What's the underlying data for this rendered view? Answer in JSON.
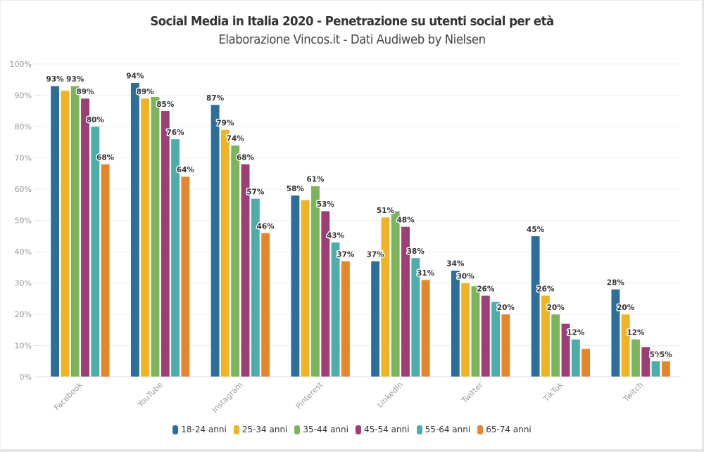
{
  "chart_data": {
    "type": "bar",
    "title": "Social Media in Italia 2020 - Penetrazione su utenti social per età",
    "subtitle": "Elaborazione Vincos.it - Dati Audiweb by Nielsen",
    "xlabel": "",
    "ylabel": "",
    "ylim": [
      0,
      100
    ],
    "yticks": [
      "0%",
      "10%",
      "20%",
      "30%",
      "40%",
      "50%",
      "60%",
      "70%",
      "80%",
      "90%",
      "100%"
    ],
    "grid": true,
    "legend_position": "bottom",
    "categories": [
      "Facebook",
      "YouTube",
      "Instagram",
      "Pinterest",
      "LinkedIn",
      "Twitter",
      "TikTok",
      "Twitch"
    ],
    "series": [
      {
        "name": "18-24 anni",
        "color": "#2e6f9a",
        "values": [
          93,
          94,
          87,
          58,
          37,
          34,
          45,
          28
        ],
        "labels": [
          "93%",
          "94%",
          "87%",
          "58%",
          "37%",
          "34%",
          "45%",
          "28%"
        ]
      },
      {
        "name": "25-34 anni",
        "color": "#f0b323",
        "values": [
          91.5,
          89,
          79,
          56.5,
          51,
          30,
          26,
          20
        ],
        "labels": [
          "",
          "89%",
          "79%",
          "",
          "51%",
          "30%",
          "26%",
          "20%"
        ]
      },
      {
        "name": "35-44 anni",
        "color": "#7cb45a",
        "values": [
          93,
          89.5,
          74,
          61,
          53,
          29,
          20,
          12
        ],
        "labels": [
          "93%",
          "",
          "74%",
          "61%",
          "",
          "",
          "20%",
          "12%"
        ]
      },
      {
        "name": "45-54 anni",
        "color": "#9b3f74",
        "values": [
          89,
          85,
          68,
          53,
          48,
          26,
          17,
          9.5
        ],
        "labels": [
          "89%",
          "85%",
          "68%",
          "53%",
          "48%",
          "26%",
          "",
          ""
        ]
      },
      {
        "name": "55-64 anni",
        "color": "#4aaeac",
        "values": [
          80,
          76,
          57,
          43,
          38,
          24,
          12,
          5
        ],
        "labels": [
          "80%",
          "76%",
          "57%",
          "43%",
          "38%",
          "",
          "12%",
          "5%"
        ]
      },
      {
        "name": "65-74 anni",
        "color": "#e5862a",
        "values": [
          68,
          64,
          46,
          37,
          31,
          20,
          9,
          5
        ],
        "labels": [
          "68%",
          "64%",
          "46%",
          "37%",
          "31%",
          "20%",
          "",
          "5%"
        ]
      }
    ]
  }
}
